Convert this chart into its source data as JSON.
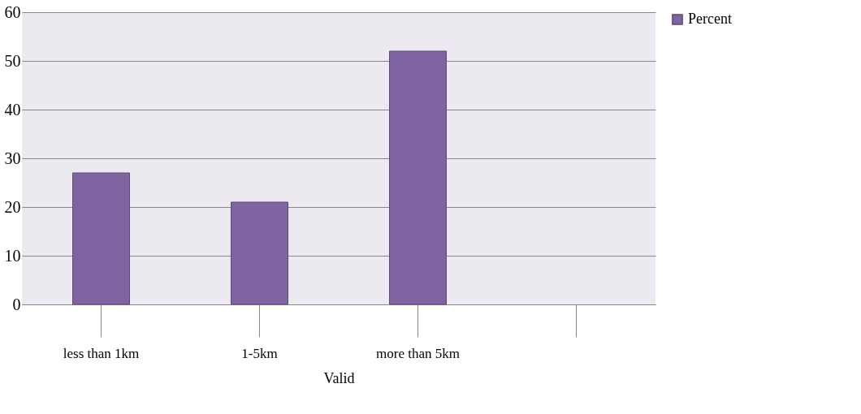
{
  "chart_data": {
    "type": "bar",
    "categories": [
      "less than 1km",
      "1-5km",
      "more than 5km",
      null
    ],
    "xlabel": "Valid",
    "series": [
      {
        "name": "Percent",
        "color": "#8064a2",
        "values": [
          27,
          21,
          52,
          null
        ]
      }
    ],
    "ylim": [
      0,
      60
    ],
    "yticks": [
      0,
      10,
      20,
      30,
      40,
      50,
      60
    ],
    "grid": "y",
    "legend": "top right"
  }
}
